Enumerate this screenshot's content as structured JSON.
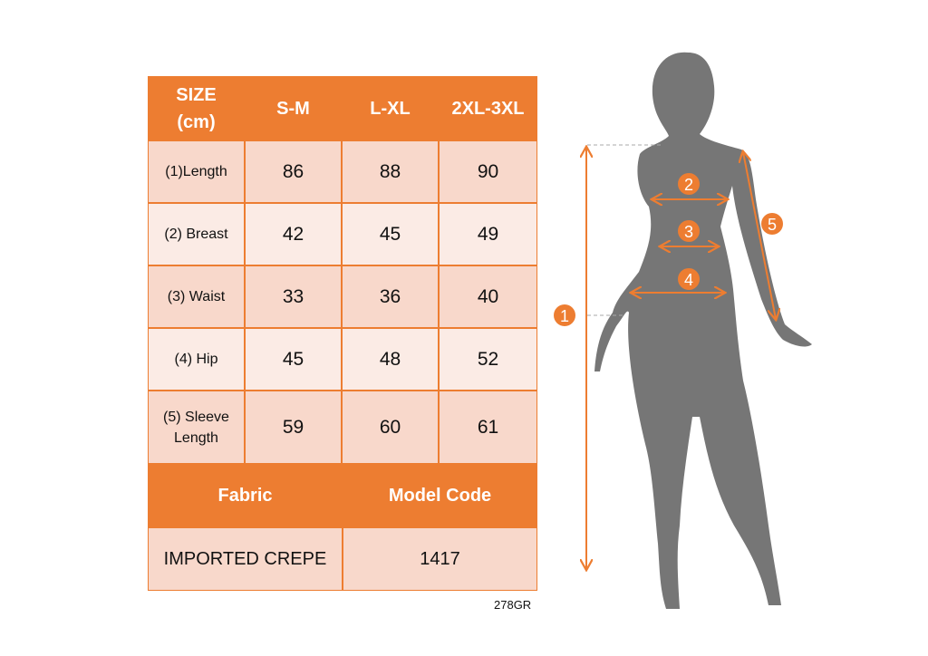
{
  "table": {
    "headers": [
      "SIZE\n(cm)",
      "S-M",
      "L-XL",
      "2XL-3XL"
    ],
    "header_line1": "SIZE",
    "header_line2": "(cm)",
    "rows": [
      {
        "label": "(1)Length",
        "values": [
          "86",
          "88",
          "90"
        ]
      },
      {
        "label": "(2) Breast",
        "values": [
          "42",
          "45",
          "49"
        ]
      },
      {
        "label": "(3) Waist",
        "values": [
          "33",
          "36",
          "40"
        ]
      },
      {
        "label": "(4) Hip",
        "values": [
          "45",
          "48",
          "52"
        ]
      },
      {
        "label": "(5) Sleeve Length",
        "label_line1": "(5) Sleeve",
        "label_line2": "Length",
        "values": [
          "59",
          "60",
          "61"
        ]
      }
    ],
    "footer_headers": [
      "Fabric",
      "Model Code"
    ],
    "footer_values": [
      "IMPORTED CREPE",
      "1417"
    ]
  },
  "product_code": "278GR",
  "figure": {
    "markers": [
      "1",
      "2",
      "3",
      "4",
      "5"
    ]
  },
  "colors": {
    "accent": "#ed7d31",
    "row_dark": "#f8d8cb",
    "row_light": "#fbebe5",
    "silhouette": "#767676"
  }
}
